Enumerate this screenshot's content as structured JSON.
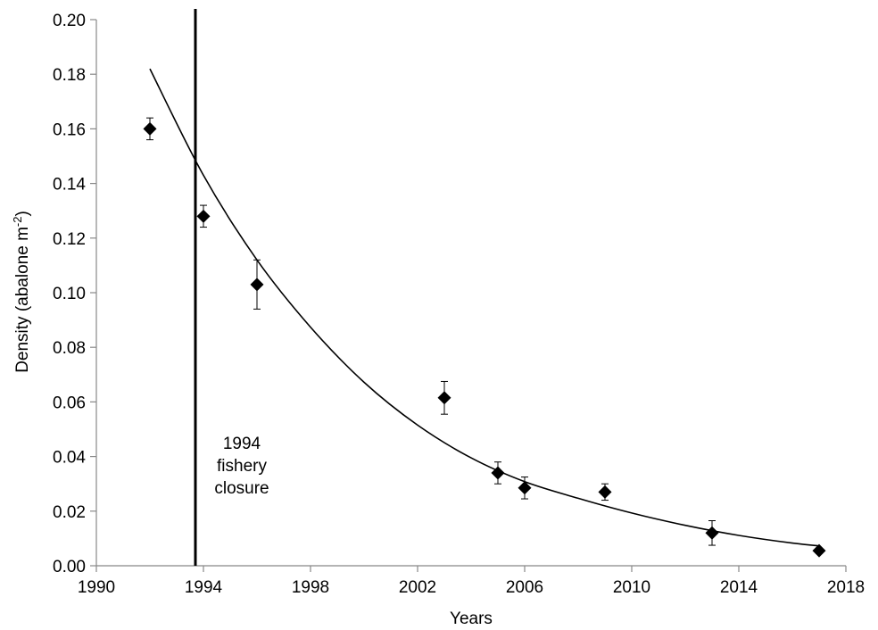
{
  "chart_data": {
    "type": "scatter",
    "xlabel": "Years",
    "ylabel": "Density (abalone m",
    "ylabel_superscript": "-2",
    "ylabel_suffix": ")",
    "xlim": [
      1990,
      2018
    ],
    "ylim": [
      0,
      0.2
    ],
    "x_ticks": [
      1990,
      1994,
      1998,
      2002,
      2006,
      2010,
      2014,
      2018
    ],
    "x_tick_labels": [
      "1990",
      "1994",
      "1998",
      "2002",
      "2006",
      "2010",
      "2014",
      "2018"
    ],
    "y_ticks": [
      0,
      0.02,
      0.04,
      0.06,
      0.08,
      0.1,
      0.12,
      0.14,
      0.16,
      0.18,
      0.2
    ],
    "y_tick_labels": [
      "0.00",
      "0.02",
      "0.04",
      "0.06",
      "0.08",
      "0.10",
      "0.12",
      "0.14",
      "0.16",
      "0.18",
      "0.20"
    ],
    "grid": false,
    "marker": "diamond",
    "marker_color": "#000000",
    "series": [
      {
        "points": [
          {
            "x": 1992,
            "y": 0.16,
            "err": 0.004
          },
          {
            "x": 1994,
            "y": 0.128,
            "err": 0.004
          },
          {
            "x": 1996,
            "y": 0.103,
            "err": 0.009
          },
          {
            "x": 2003,
            "y": 0.0615,
            "err": 0.006
          },
          {
            "x": 2005,
            "y": 0.034,
            "err": 0.004
          },
          {
            "x": 2006,
            "y": 0.0285,
            "err": 0.004
          },
          {
            "x": 2009,
            "y": 0.027,
            "err": 0.003
          },
          {
            "x": 2013,
            "y": 0.012,
            "err": 0.0045
          },
          {
            "x": 2017,
            "y": 0.0055,
            "err": 0.001
          }
        ]
      }
    ],
    "trendline": {
      "type": "exponential",
      "x": [
        1992,
        1994,
        1996,
        1998,
        2000,
        2002,
        2004,
        2006,
        2008,
        2010,
        2012,
        2014,
        2016,
        2017
      ],
      "y": [
        0.182,
        0.143,
        0.112,
        0.0874,
        0.0672,
        0.0515,
        0.0395,
        0.0308,
        0.0247,
        0.0193,
        0.0148,
        0.0111,
        0.0083,
        0.0073
      ]
    },
    "vertical_line": {
      "x": 1993.7,
      "color": "#000000"
    },
    "annotation": [
      "1994",
      "fishery",
      "closure"
    ]
  }
}
